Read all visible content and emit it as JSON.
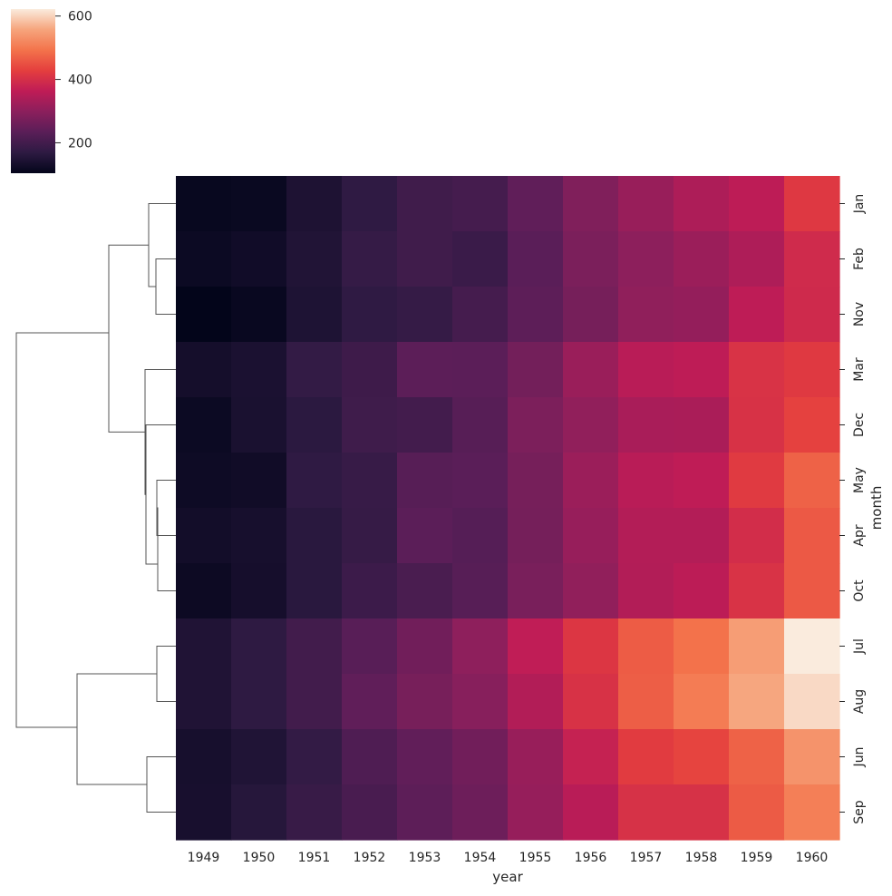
{
  "chart_data": {
    "type": "heatmap",
    "title": "",
    "xlabel": "year",
    "ylabel": "month",
    "x": [
      "1949",
      "1950",
      "1951",
      "1952",
      "1953",
      "1954",
      "1955",
      "1956",
      "1957",
      "1958",
      "1959",
      "1960"
    ],
    "y": [
      "Jan",
      "Feb",
      "Nov",
      "Mar",
      "Dec",
      "May",
      "Apr",
      "Oct",
      "Jul",
      "Aug",
      "Jun",
      "Sep"
    ],
    "values": [
      [
        112,
        115,
        145,
        171,
        196,
        204,
        242,
        284,
        315,
        340,
        360,
        417
      ],
      [
        118,
        126,
        150,
        180,
        196,
        188,
        233,
        277,
        301,
        318,
        342,
        391
      ],
      [
        104,
        114,
        146,
        172,
        180,
        203,
        237,
        271,
        305,
        310,
        362,
        390
      ],
      [
        132,
        141,
        178,
        193,
        236,
        235,
        267,
        317,
        356,
        362,
        406,
        419
      ],
      [
        118,
        140,
        166,
        194,
        201,
        229,
        278,
        306,
        336,
        337,
        405,
        432
      ],
      [
        121,
        125,
        172,
        183,
        229,
        234,
        270,
        318,
        355,
        363,
        420,
        472
      ],
      [
        129,
        135,
        163,
        181,
        235,
        227,
        269,
        313,
        348,
        348,
        396,
        461
      ],
      [
        119,
        133,
        162,
        191,
        211,
        229,
        274,
        306,
        347,
        359,
        407,
        461
      ],
      [
        148,
        170,
        199,
        230,
        264,
        302,
        364,
        413,
        465,
        491,
        548,
        622
      ],
      [
        148,
        170,
        199,
        242,
        272,
        293,
        347,
        405,
        467,
        505,
        559,
        606
      ],
      [
        135,
        149,
        178,
        218,
        243,
        264,
        315,
        374,
        422,
        435,
        472,
        535
      ],
      [
        136,
        158,
        184,
        209,
        237,
        259,
        312,
        355,
        404,
        404,
        463,
        508
      ]
    ],
    "colorbar": {
      "vmin": 104,
      "vmax": 622,
      "ticks": [
        200,
        400,
        600
      ],
      "tick_labels": [
        "200",
        "400",
        "600"
      ]
    },
    "row_dendrogram": true,
    "colormap": "rocket",
    "colormap_stops": [
      "#03051a",
      "#2d1a42",
      "#5a1e58",
      "#8b1f5c",
      "#bf1c56",
      "#e43e3e",
      "#f3734b",
      "#f6a47c",
      "#faebdd"
    ]
  }
}
